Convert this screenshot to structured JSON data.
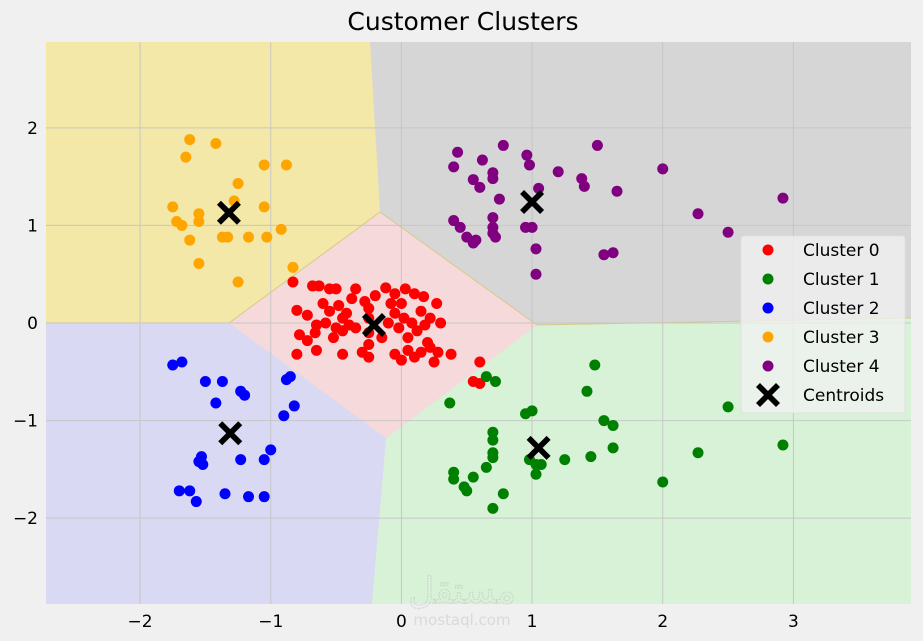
{
  "chart_data": {
    "type": "scatter",
    "title": "Customer Clusters",
    "xlabel": "",
    "ylabel": "",
    "xlim": [
      -2.72,
      3.9
    ],
    "ylim": [
      -2.88,
      2.88
    ],
    "xticks": [
      -2,
      -1,
      0,
      1,
      2,
      3
    ],
    "xtick_labels": [
      "−2",
      "−1",
      "0",
      "1",
      "2",
      "3"
    ],
    "yticks": [
      2,
      1,
      0,
      -1,
      -2
    ],
    "ytick_labels": [
      "2",
      "1",
      "0",
      "−1",
      "−2"
    ],
    "grid": true,
    "legend_position": "center right",
    "background_regions": [
      {
        "cluster": "Cluster 0",
        "color": "#f5d9db"
      },
      {
        "cluster": "Cluster 1",
        "color": "#d8f2d8"
      },
      {
        "cluster": "Cluster 2",
        "color": "#d9d9f3"
      },
      {
        "cluster": "Cluster 3",
        "color": "#f3e8a8"
      },
      {
        "cluster": "Cluster 4",
        "color": "#d6d6d6"
      }
    ],
    "series": [
      {
        "name": "Cluster 0",
        "color": "#ff0000",
        "points": [
          [
            -0.83,
            0.42
          ],
          [
            -0.68,
            0.38
          ],
          [
            -0.63,
            0.38
          ],
          [
            -0.55,
            0.35
          ],
          [
            -0.5,
            0.35
          ],
          [
            -0.38,
            0.25
          ],
          [
            -0.28,
            0.22
          ],
          [
            -0.2,
            0.28
          ],
          [
            -0.12,
            0.36
          ],
          [
            -0.05,
            0.3
          ],
          [
            0.03,
            0.35
          ],
          [
            0.1,
            0.3
          ],
          [
            0.17,
            0.27
          ],
          [
            0.27,
            0.2
          ],
          [
            -0.8,
            0.13
          ],
          [
            -0.72,
            0.08
          ],
          [
            -0.6,
            0.2
          ],
          [
            -0.55,
            0.12
          ],
          [
            -0.48,
            0.18
          ],
          [
            -0.42,
            0.1
          ],
          [
            -0.65,
            -0.02
          ],
          [
            -0.58,
            0.0
          ],
          [
            -0.5,
            -0.05
          ],
          [
            -0.45,
            0.05
          ],
          [
            -0.4,
            -0.02
          ],
          [
            -0.78,
            -0.12
          ],
          [
            -0.72,
            -0.18
          ],
          [
            -0.66,
            -0.1
          ],
          [
            -0.52,
            -0.15
          ],
          [
            -0.45,
            -0.08
          ],
          [
            -0.35,
            -0.05
          ],
          [
            -0.8,
            -0.32
          ],
          [
            -0.65,
            -0.28
          ],
          [
            -0.45,
            -0.32
          ],
          [
            -0.25,
            0.15
          ],
          [
            -0.25,
            0.05
          ],
          [
            -0.25,
            -0.1
          ],
          [
            -0.25,
            -0.22
          ],
          [
            -0.25,
            -0.35
          ],
          [
            -0.08,
            0.2
          ],
          [
            -0.05,
            0.1
          ],
          [
            -0.02,
            -0.05
          ],
          [
            0.02,
            0.05
          ],
          [
            0.05,
            -0.15
          ],
          [
            0.08,
            0.0
          ],
          [
            0.12,
            -0.08
          ],
          [
            0.15,
            0.12
          ],
          [
            0.18,
            -0.02
          ],
          [
            0.2,
            -0.2
          ],
          [
            0.22,
            0.05
          ],
          [
            -0.05,
            -0.32
          ],
          [
            0.0,
            -0.38
          ],
          [
            0.05,
            -0.28
          ],
          [
            0.1,
            -0.35
          ],
          [
            0.15,
            -0.3
          ],
          [
            0.22,
            -0.25
          ],
          [
            0.28,
            -0.3
          ],
          [
            0.25,
            -0.4
          ],
          [
            0.38,
            -0.32
          ],
          [
            0.55,
            -0.6
          ],
          [
            0.6,
            -0.62
          ],
          [
            0.6,
            -0.4
          ],
          [
            -0.1,
            0.0
          ],
          [
            0.0,
            0.2
          ],
          [
            -0.15,
            -0.15
          ],
          [
            -0.35,
            0.35
          ],
          [
            -0.3,
            -0.3
          ],
          [
            0.3,
            0.0
          ]
        ]
      },
      {
        "name": "Cluster 1",
        "color": "#008000",
        "points": [
          [
            0.37,
            -0.82
          ],
          [
            0.65,
            -0.55
          ],
          [
            0.72,
            -0.6
          ],
          [
            0.7,
            -1.12
          ],
          [
            0.7,
            -1.2
          ],
          [
            0.7,
            -1.33
          ],
          [
            0.7,
            -1.38
          ],
          [
            0.65,
            -1.48
          ],
          [
            0.4,
            -1.53
          ],
          [
            0.4,
            -1.6
          ],
          [
            0.48,
            -1.68
          ],
          [
            0.5,
            -1.72
          ],
          [
            0.55,
            -1.58
          ],
          [
            0.78,
            -1.75
          ],
          [
            0.7,
            -1.9
          ],
          [
            0.95,
            -0.93
          ],
          [
            1.0,
            -0.9
          ],
          [
            0.98,
            -1.4
          ],
          [
            1.03,
            -1.45
          ],
          [
            1.07,
            -1.45
          ],
          [
            1.03,
            -1.55
          ],
          [
            1.25,
            -1.4
          ],
          [
            1.42,
            -0.7
          ],
          [
            1.48,
            -0.43
          ],
          [
            1.55,
            -1.0
          ],
          [
            1.62,
            -1.05
          ],
          [
            1.62,
            -1.28
          ],
          [
            1.45,
            -1.37
          ],
          [
            2.0,
            -1.63
          ],
          [
            2.27,
            -1.33
          ],
          [
            2.5,
            -0.86
          ],
          [
            2.92,
            -1.25
          ]
        ]
      },
      {
        "name": "Cluster 2",
        "color": "#0000ff",
        "points": [
          [
            -1.75,
            -0.43
          ],
          [
            -1.68,
            -0.4
          ],
          [
            -1.5,
            -0.6
          ],
          [
            -1.37,
            -0.6
          ],
          [
            -1.23,
            -0.7
          ],
          [
            -1.2,
            -0.74
          ],
          [
            -1.42,
            -0.82
          ],
          [
            -0.88,
            -0.58
          ],
          [
            -0.85,
            -0.55
          ],
          [
            -0.82,
            -0.85
          ],
          [
            -0.9,
            -0.95
          ],
          [
            -1.0,
            -1.3
          ],
          [
            -1.05,
            -1.4
          ],
          [
            -1.23,
            -1.4
          ],
          [
            -1.53,
            -1.37
          ],
          [
            -1.55,
            -1.42
          ],
          [
            -1.52,
            -1.45
          ],
          [
            -1.7,
            -1.72
          ],
          [
            -1.62,
            -1.72
          ],
          [
            -1.57,
            -1.83
          ],
          [
            -1.35,
            -1.75
          ],
          [
            -1.17,
            -1.78
          ],
          [
            -1.05,
            -1.78
          ]
        ]
      },
      {
        "name": "Cluster 3",
        "color": "#ffa500",
        "points": [
          [
            -1.62,
            1.88
          ],
          [
            -1.42,
            1.84
          ],
          [
            -1.65,
            1.7
          ],
          [
            -1.05,
            1.62
          ],
          [
            -0.88,
            1.62
          ],
          [
            -1.25,
            1.43
          ],
          [
            -1.28,
            1.25
          ],
          [
            -1.75,
            1.19
          ],
          [
            -1.05,
            1.19
          ],
          [
            -1.55,
            1.12
          ],
          [
            -1.72,
            1.04
          ],
          [
            -1.68,
            1.0
          ],
          [
            -1.55,
            1.04
          ],
          [
            -1.62,
            0.85
          ],
          [
            -1.37,
            0.88
          ],
          [
            -1.33,
            0.88
          ],
          [
            -1.17,
            0.88
          ],
          [
            -1.03,
            0.88
          ],
          [
            -0.92,
            0.96
          ],
          [
            -1.55,
            0.61
          ],
          [
            -0.83,
            0.57
          ],
          [
            -1.25,
            0.42
          ]
        ]
      },
      {
        "name": "Cluster 4",
        "color": "#800080",
        "points": [
          [
            0.4,
            1.6
          ],
          [
            0.43,
            1.75
          ],
          [
            0.55,
            1.47
          ],
          [
            0.62,
            1.67
          ],
          [
            0.7,
            1.54
          ],
          [
            0.7,
            1.48
          ],
          [
            0.6,
            1.39
          ],
          [
            0.75,
            1.27
          ],
          [
            0.78,
            1.82
          ],
          [
            0.96,
            1.72
          ],
          [
            0.98,
            1.62
          ],
          [
            1.05,
            1.38
          ],
          [
            1.2,
            1.55
          ],
          [
            1.38,
            1.48
          ],
          [
            1.4,
            1.4
          ],
          [
            1.5,
            1.82
          ],
          [
            1.65,
            1.35
          ],
          [
            0.4,
            1.05
          ],
          [
            0.45,
            0.98
          ],
          [
            0.5,
            0.88
          ],
          [
            0.55,
            0.82
          ],
          [
            0.57,
            0.85
          ],
          [
            0.7,
            1.08
          ],
          [
            0.7,
            0.98
          ],
          [
            0.7,
            0.92
          ],
          [
            0.72,
            0.88
          ],
          [
            0.95,
            0.98
          ],
          [
            1.0,
            0.98
          ],
          [
            1.03,
            0.76
          ],
          [
            1.03,
            0.5
          ],
          [
            1.55,
            0.7
          ],
          [
            1.62,
            0.72
          ],
          [
            2.0,
            1.58
          ],
          [
            2.27,
            1.12
          ],
          [
            2.5,
            0.93
          ],
          [
            2.92,
            1.28
          ]
        ]
      }
    ],
    "centroids": {
      "name": "Centroids",
      "color": "#000000",
      "marker": "X",
      "points": [
        [
          -0.21,
          -0.02
        ],
        [
          1.05,
          -1.28
        ],
        [
          -1.31,
          -1.13
        ],
        [
          -1.32,
          1.13
        ],
        [
          1.0,
          1.24
        ]
      ]
    },
    "legend": [
      {
        "label": "Cluster 0",
        "color": "#ff0000",
        "marker": "circle"
      },
      {
        "label": "Cluster 1",
        "color": "#008000",
        "marker": "circle"
      },
      {
        "label": "Cluster 2",
        "color": "#0000ff",
        "marker": "circle"
      },
      {
        "label": "Cluster 3",
        "color": "#ffa500",
        "marker": "circle"
      },
      {
        "label": "Cluster 4",
        "color": "#800080",
        "marker": "circle"
      },
      {
        "label": "Centroids",
        "color": "#000000",
        "marker": "X"
      }
    ]
  },
  "watermark": {
    "arabic": "مستقل",
    "latin": "mostaql.com"
  }
}
